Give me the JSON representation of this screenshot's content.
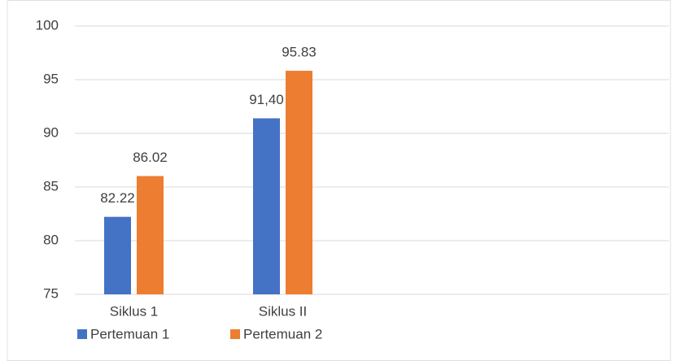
{
  "chart_data": {
    "type": "bar",
    "categories": [
      "Siklus 1",
      "Siklus II",
      null,
      null
    ],
    "series": [
      {
        "name": "Pertemuan 1",
        "color": "#4472c4",
        "values": [
          82.22,
          91.4,
          null,
          null
        ],
        "value_labels": [
          "82.22",
          "91,40",
          null,
          null
        ]
      },
      {
        "name": "Pertemuan 2",
        "color": "#ed7d31",
        "values": [
          86.02,
          95.83,
          null,
          null
        ],
        "value_labels": [
          "86.02",
          "95.83",
          null,
          null
        ]
      }
    ],
    "ylim": [
      75,
      100
    ],
    "yticks": [
      75,
      80,
      85,
      90,
      95,
      100
    ],
    "grid": true,
    "legend": "bottom"
  }
}
